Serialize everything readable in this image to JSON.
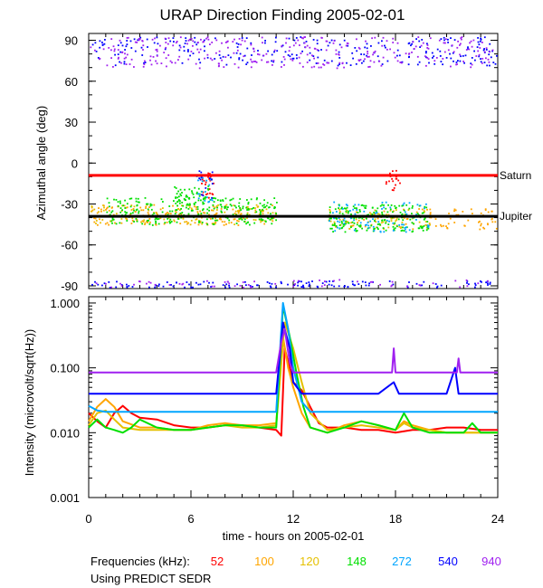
{
  "chart_data": [
    {
      "type": "scatter",
      "title": "URAP Direction Finding  2005-02-01",
      "xlabel": "",
      "ylabel": "Azimuthal angle (deg)",
      "xlim": [
        0,
        24
      ],
      "ylim": [
        -92,
        95
      ],
      "xticks": [
        0,
        6,
        12,
        18,
        24
      ],
      "yticks": [
        90,
        60,
        30,
        0,
        -30,
        -60,
        -90
      ],
      "ytick_labels": [
        "90",
        "60",
        "30",
        "0",
        "-30",
        "-60",
        "-90"
      ],
      "reference_lines": [
        {
          "name": "Saturn",
          "value": -9,
          "color": "#ff0000"
        },
        {
          "name": "Jupiter",
          "value": -39,
          "color": "#000000"
        }
      ],
      "series": [
        {
          "name": "52",
          "color": "#ff0000",
          "clusters": [
            {
              "x": [
                6.5,
                7.3
              ],
              "y": [
                -5,
                -25
              ],
              "n": 25
            },
            {
              "x": [
                17.4,
                18.3
              ],
              "y": [
                -5,
                -20
              ],
              "n": 20
            }
          ]
        },
        {
          "name": "100",
          "color": "#ffa500",
          "clusters": [
            {
              "x": [
                0.0,
                11.0
              ],
              "y": [
                -30,
                -45
              ],
              "n": 170
            },
            {
              "x": [
                14.0,
                24.0
              ],
              "y": [
                -33,
                -48
              ],
              "n": 110
            }
          ]
        },
        {
          "name": "120",
          "color": "#e5c000",
          "clusters": [
            {
              "x": [
                0.0,
                11.0
              ],
              "y": [
                -30,
                -45
              ],
              "n": 110
            },
            {
              "x": [
                14.0,
                20.0
              ],
              "y": [
                -33,
                -48
              ],
              "n": 60
            }
          ]
        },
        {
          "name": "148",
          "color": "#00e000",
          "clusters": [
            {
              "x": [
                1.0,
                11.0
              ],
              "y": [
                -25,
                -45
              ],
              "n": 260
            },
            {
              "x": [
                14.0,
                20.0
              ],
              "y": [
                -30,
                -50
              ],
              "n": 190
            },
            {
              "x": [
                5.0,
                7.0
              ],
              "y": [
                -15,
                -30
              ],
              "n": 50
            }
          ]
        },
        {
          "name": "272",
          "color": "#00a5ff",
          "clusters": [
            {
              "x": [
                14.0,
                20.0
              ],
              "y": [
                -28,
                -50
              ],
              "n": 80
            },
            {
              "x": [
                6.3,
                7.3
              ],
              "y": [
                -8,
                -28
              ],
              "n": 20
            }
          ]
        },
        {
          "name": "540",
          "color": "#0000ff",
          "clusters": [
            {
              "x": [
                0.0,
                24.0
              ],
              "y": [
                72,
                93
              ],
              "n": 260
            },
            {
              "x": [
                0.0,
                24.0
              ],
              "y": [
                -86,
                -92
              ],
              "n": 170
            },
            {
              "x": [
                6.4,
                7.3
              ],
              "y": [
                -5,
                -25
              ],
              "n": 15
            }
          ]
        },
        {
          "name": "940",
          "color": "#a020f0",
          "clusters": [
            {
              "x": [
                0.0,
                24.0
              ],
              "y": [
                70,
                93
              ],
              "n": 320
            },
            {
              "x": [
                0.0,
                24.0
              ],
              "y": [
                -85,
                -92
              ],
              "n": 70
            }
          ]
        }
      ]
    },
    {
      "type": "line",
      "title": "",
      "xlabel": "time - hours on 2005-02-01",
      "ylabel": "Intensity (microvolt/sqrt(Hz))",
      "xlim": [
        0,
        24
      ],
      "ylim": [
        0.001,
        1.25
      ],
      "yscale": "log",
      "xticks": [
        0,
        6,
        12,
        18,
        24
      ],
      "xtick_labels": [
        "0",
        "6",
        "12",
        "18",
        "24"
      ],
      "yticks": [
        1.0,
        0.1,
        0.01,
        0.001
      ],
      "ytick_labels": [
        "1.000",
        "0.100",
        "0.010",
        "0.001"
      ],
      "series": [
        {
          "name": "52",
          "color": "#ff0000",
          "x": [
            0,
            0.5,
            1.0,
            1.5,
            2.0,
            2.5,
            3.0,
            4.0,
            5.0,
            6.0,
            7.0,
            8.0,
            9.0,
            10.0,
            11.0,
            11.3,
            11.5,
            12.0,
            12.5,
            13.0,
            13.5,
            14.0,
            15.0,
            16.0,
            17.0,
            18.0,
            19.0,
            20.0,
            21.0,
            22.0,
            23.0,
            24.0
          ],
          "y": [
            0.02,
            0.015,
            0.012,
            0.02,
            0.026,
            0.02,
            0.017,
            0.016,
            0.013,
            0.012,
            0.012,
            0.013,
            0.013,
            0.012,
            0.011,
            0.009,
            0.2,
            0.06,
            0.045,
            0.025,
            0.014,
            0.012,
            0.012,
            0.011,
            0.011,
            0.01,
            0.011,
            0.011,
            0.012,
            0.012,
            0.011,
            0.011
          ]
        },
        {
          "name": "100",
          "color": "#ffa500",
          "x": [
            0,
            0.5,
            1.0,
            1.5,
            2.0,
            3.0,
            4.0,
            5.0,
            6.0,
            7.0,
            8.0,
            9.0,
            10.0,
            11.0,
            11.4,
            11.7,
            12.0,
            12.5,
            13.0,
            14.0,
            15.0,
            16.0,
            17.0,
            18.0,
            18.5,
            19.0,
            20.0,
            21.0,
            22.0,
            23.0,
            24.0
          ],
          "y": [
            0.015,
            0.025,
            0.033,
            0.025,
            0.015,
            0.012,
            0.012,
            0.011,
            0.011,
            0.013,
            0.014,
            0.013,
            0.013,
            0.014,
            0.3,
            0.1,
            0.05,
            0.02,
            0.012,
            0.01,
            0.013,
            0.015,
            0.013,
            0.011,
            0.015,
            0.013,
            0.011,
            0.01,
            0.01,
            0.01,
            0.01
          ]
        },
        {
          "name": "120",
          "color": "#e5c000",
          "x": [
            0,
            0.5,
            1.0,
            1.5,
            2.0,
            3.0,
            4.0,
            5.0,
            6.0,
            7.0,
            8.0,
            9.0,
            10.0,
            11.0,
            11.5,
            12.0,
            12.5,
            13.0,
            14.0,
            15.0,
            16.0,
            17.0,
            18.0,
            18.5,
            19.0,
            20.0,
            21.0,
            22.0,
            23.0,
            24.0
          ],
          "y": [
            0.013,
            0.02,
            0.022,
            0.016,
            0.012,
            0.011,
            0.011,
            0.011,
            0.011,
            0.012,
            0.013,
            0.012,
            0.012,
            0.013,
            0.5,
            0.2,
            0.06,
            0.02,
            0.011,
            0.012,
            0.013,
            0.012,
            0.011,
            0.014,
            0.012,
            0.011,
            0.01,
            0.01,
            0.01,
            0.01
          ]
        },
        {
          "name": "148",
          "color": "#00e000",
          "x": [
            0,
            0.5,
            1.0,
            1.5,
            2.0,
            2.5,
            3.0,
            4.0,
            5.0,
            6.0,
            7.0,
            8.0,
            9.0,
            10.0,
            11.0,
            11.4,
            11.8,
            12.2,
            12.6,
            13.0,
            14.0,
            15.0,
            16.0,
            17.0,
            18.0,
            18.5,
            19.0,
            20.0,
            21.0,
            22.0,
            22.5,
            23.0,
            24.0
          ],
          "y": [
            0.012,
            0.016,
            0.012,
            0.011,
            0.01,
            0.012,
            0.016,
            0.012,
            0.011,
            0.011,
            0.012,
            0.013,
            0.013,
            0.012,
            0.012,
            0.9,
            0.3,
            0.08,
            0.025,
            0.012,
            0.01,
            0.012,
            0.015,
            0.013,
            0.011,
            0.02,
            0.012,
            0.01,
            0.01,
            0.01,
            0.014,
            0.01,
            0.01
          ]
        },
        {
          "name": "272",
          "color": "#00a5ff",
          "x": [
            0,
            0.5,
            1.0,
            2.0,
            3.0,
            4.0,
            5.0,
            6.0,
            7.0,
            8.0,
            9.0,
            10.0,
            11.0,
            11.4,
            11.7,
            12.0,
            12.5,
            13.0,
            14.0,
            15.0,
            16.0,
            17.0,
            18.0,
            19.0,
            20.0,
            21.0,
            22.0,
            23.0,
            24.0
          ],
          "y": [
            0.026,
            0.022,
            0.021,
            0.021,
            0.021,
            0.021,
            0.021,
            0.021,
            0.021,
            0.021,
            0.021,
            0.021,
            0.021,
            1.0,
            0.4,
            0.1,
            0.03,
            0.021,
            0.021,
            0.021,
            0.021,
            0.021,
            0.021,
            0.021,
            0.021,
            0.021,
            0.021,
            0.021,
            0.021
          ]
        },
        {
          "name": "540",
          "color": "#0000ff",
          "x": [
            0,
            1.0,
            2.0,
            3.0,
            4.0,
            5.0,
            6.0,
            7.0,
            8.0,
            9.0,
            10.0,
            11.0,
            11.4,
            11.8,
            12.0,
            12.5,
            13.0,
            14.0,
            15.0,
            16.0,
            17.0,
            17.9,
            18.2,
            18.5,
            19.0,
            20.0,
            21.0,
            21.5,
            21.7,
            22.0,
            23.0,
            24.0
          ],
          "y": [
            0.04,
            0.04,
            0.04,
            0.04,
            0.04,
            0.04,
            0.04,
            0.04,
            0.04,
            0.04,
            0.04,
            0.04,
            0.5,
            0.2,
            0.06,
            0.04,
            0.04,
            0.04,
            0.04,
            0.04,
            0.04,
            0.06,
            0.04,
            0.04,
            0.04,
            0.04,
            0.04,
            0.1,
            0.04,
            0.04,
            0.04,
            0.04
          ]
        },
        {
          "name": "940",
          "color": "#a020f0",
          "x": [
            0,
            2.0,
            4.0,
            6.0,
            8.0,
            10.0,
            11.0,
            11.3,
            11.5,
            11.8,
            12.0,
            14.0,
            16.0,
            17.8,
            17.9,
            18.0,
            20.0,
            21.6,
            21.7,
            21.8,
            22.0,
            24.0
          ],
          "y": [
            0.085,
            0.085,
            0.085,
            0.085,
            0.085,
            0.085,
            0.085,
            0.25,
            0.4,
            0.12,
            0.085,
            0.085,
            0.085,
            0.085,
            0.2,
            0.085,
            0.085,
            0.085,
            0.14,
            0.085,
            0.085,
            0.085
          ]
        }
      ]
    }
  ],
  "legend": {
    "title": "Frequencies (kHz):",
    "items": [
      {
        "label": "52",
        "color": "#ff0000"
      },
      {
        "label": "100",
        "color": "#ffa500"
      },
      {
        "label": "120",
        "color": "#e5c000"
      },
      {
        "label": "148",
        "color": "#00e000"
      },
      {
        "label": "272",
        "color": "#00a5ff"
      },
      {
        "label": "540",
        "color": "#0000ff"
      },
      {
        "label": "940",
        "color": "#a020f0"
      }
    ]
  },
  "footer": {
    "note": "Using PREDICT SEDR"
  }
}
